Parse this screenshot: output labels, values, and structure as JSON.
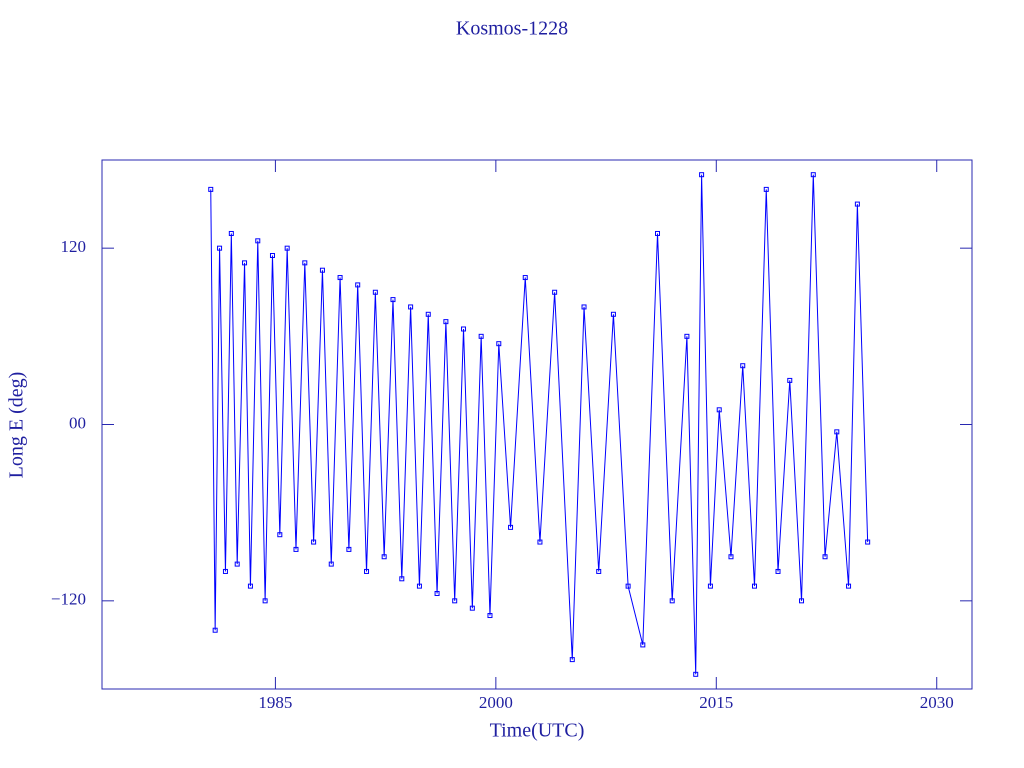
{
  "chart_data": {
    "type": "line",
    "title": "Kosmos-1228",
    "x_label": "Time(UTC)",
    "y_label": "Long E (deg)",
    "xlim": [
      1973.2,
      2032.4
    ],
    "xticks": [
      1985,
      2000,
      2015,
      2030
    ],
    "ylim": [
      -180,
      180
    ],
    "yticks": [
      {
        "value": 120,
        "label": "120"
      },
      {
        "value": 0,
        "label": "00"
      },
      {
        "value": -120,
        "label": "−120"
      }
    ],
    "color": "#0000ff",
    "x": [
      1980.6,
      1980.9,
      1981.2,
      1981.6,
      1982,
      1982.4,
      1982.9,
      1983.3,
      1983.8,
      1984.3,
      1984.8,
      1985.3,
      1985.8,
      1986.4,
      1987,
      1987.6,
      1988.2,
      1988.8,
      1989.4,
      1990,
      1990.6,
      1991.2,
      1991.8,
      1992.4,
      1993,
      1993.6,
      1994.2,
      1994.8,
      1995.4,
      1996,
      1996.6,
      1997.2,
      1997.8,
      1998.4,
      1999,
      1999.6,
      2000.2,
      2001,
      2002,
      2003,
      2004,
      2005.2,
      2006,
      2007,
      2008,
      2009,
      2010,
      2011,
      2012,
      2013,
      2013.6,
      2014,
      2014.6,
      2015.2,
      2016,
      2016.8,
      2017.6,
      2018.4,
      2019.2,
      2020,
      2020.8,
      2021.6,
      2022.4,
      2023.2,
      2024,
      2024.6,
      2025.3
    ],
    "values": [
      160,
      -140,
      120,
      -100,
      130,
      -95,
      110,
      -110,
      125,
      -120,
      115,
      -75,
      120,
      -85,
      110,
      -80,
      105,
      -95,
      100,
      -85,
      95,
      -100,
      90,
      -90,
      85,
      -105,
      80,
      -110,
      75,
      -115,
      70,
      -120,
      65,
      -125,
      60,
      -130,
      55,
      -70,
      100,
      -80,
      90,
      -160,
      80,
      -100,
      75,
      -110,
      -150,
      130,
      -120,
      60,
      -170,
      170,
      -110,
      10,
      -90,
      40,
      -110,
      160,
      -100,
      30,
      -120,
      170,
      -90,
      -5,
      -110,
      150,
      -80
    ]
  }
}
